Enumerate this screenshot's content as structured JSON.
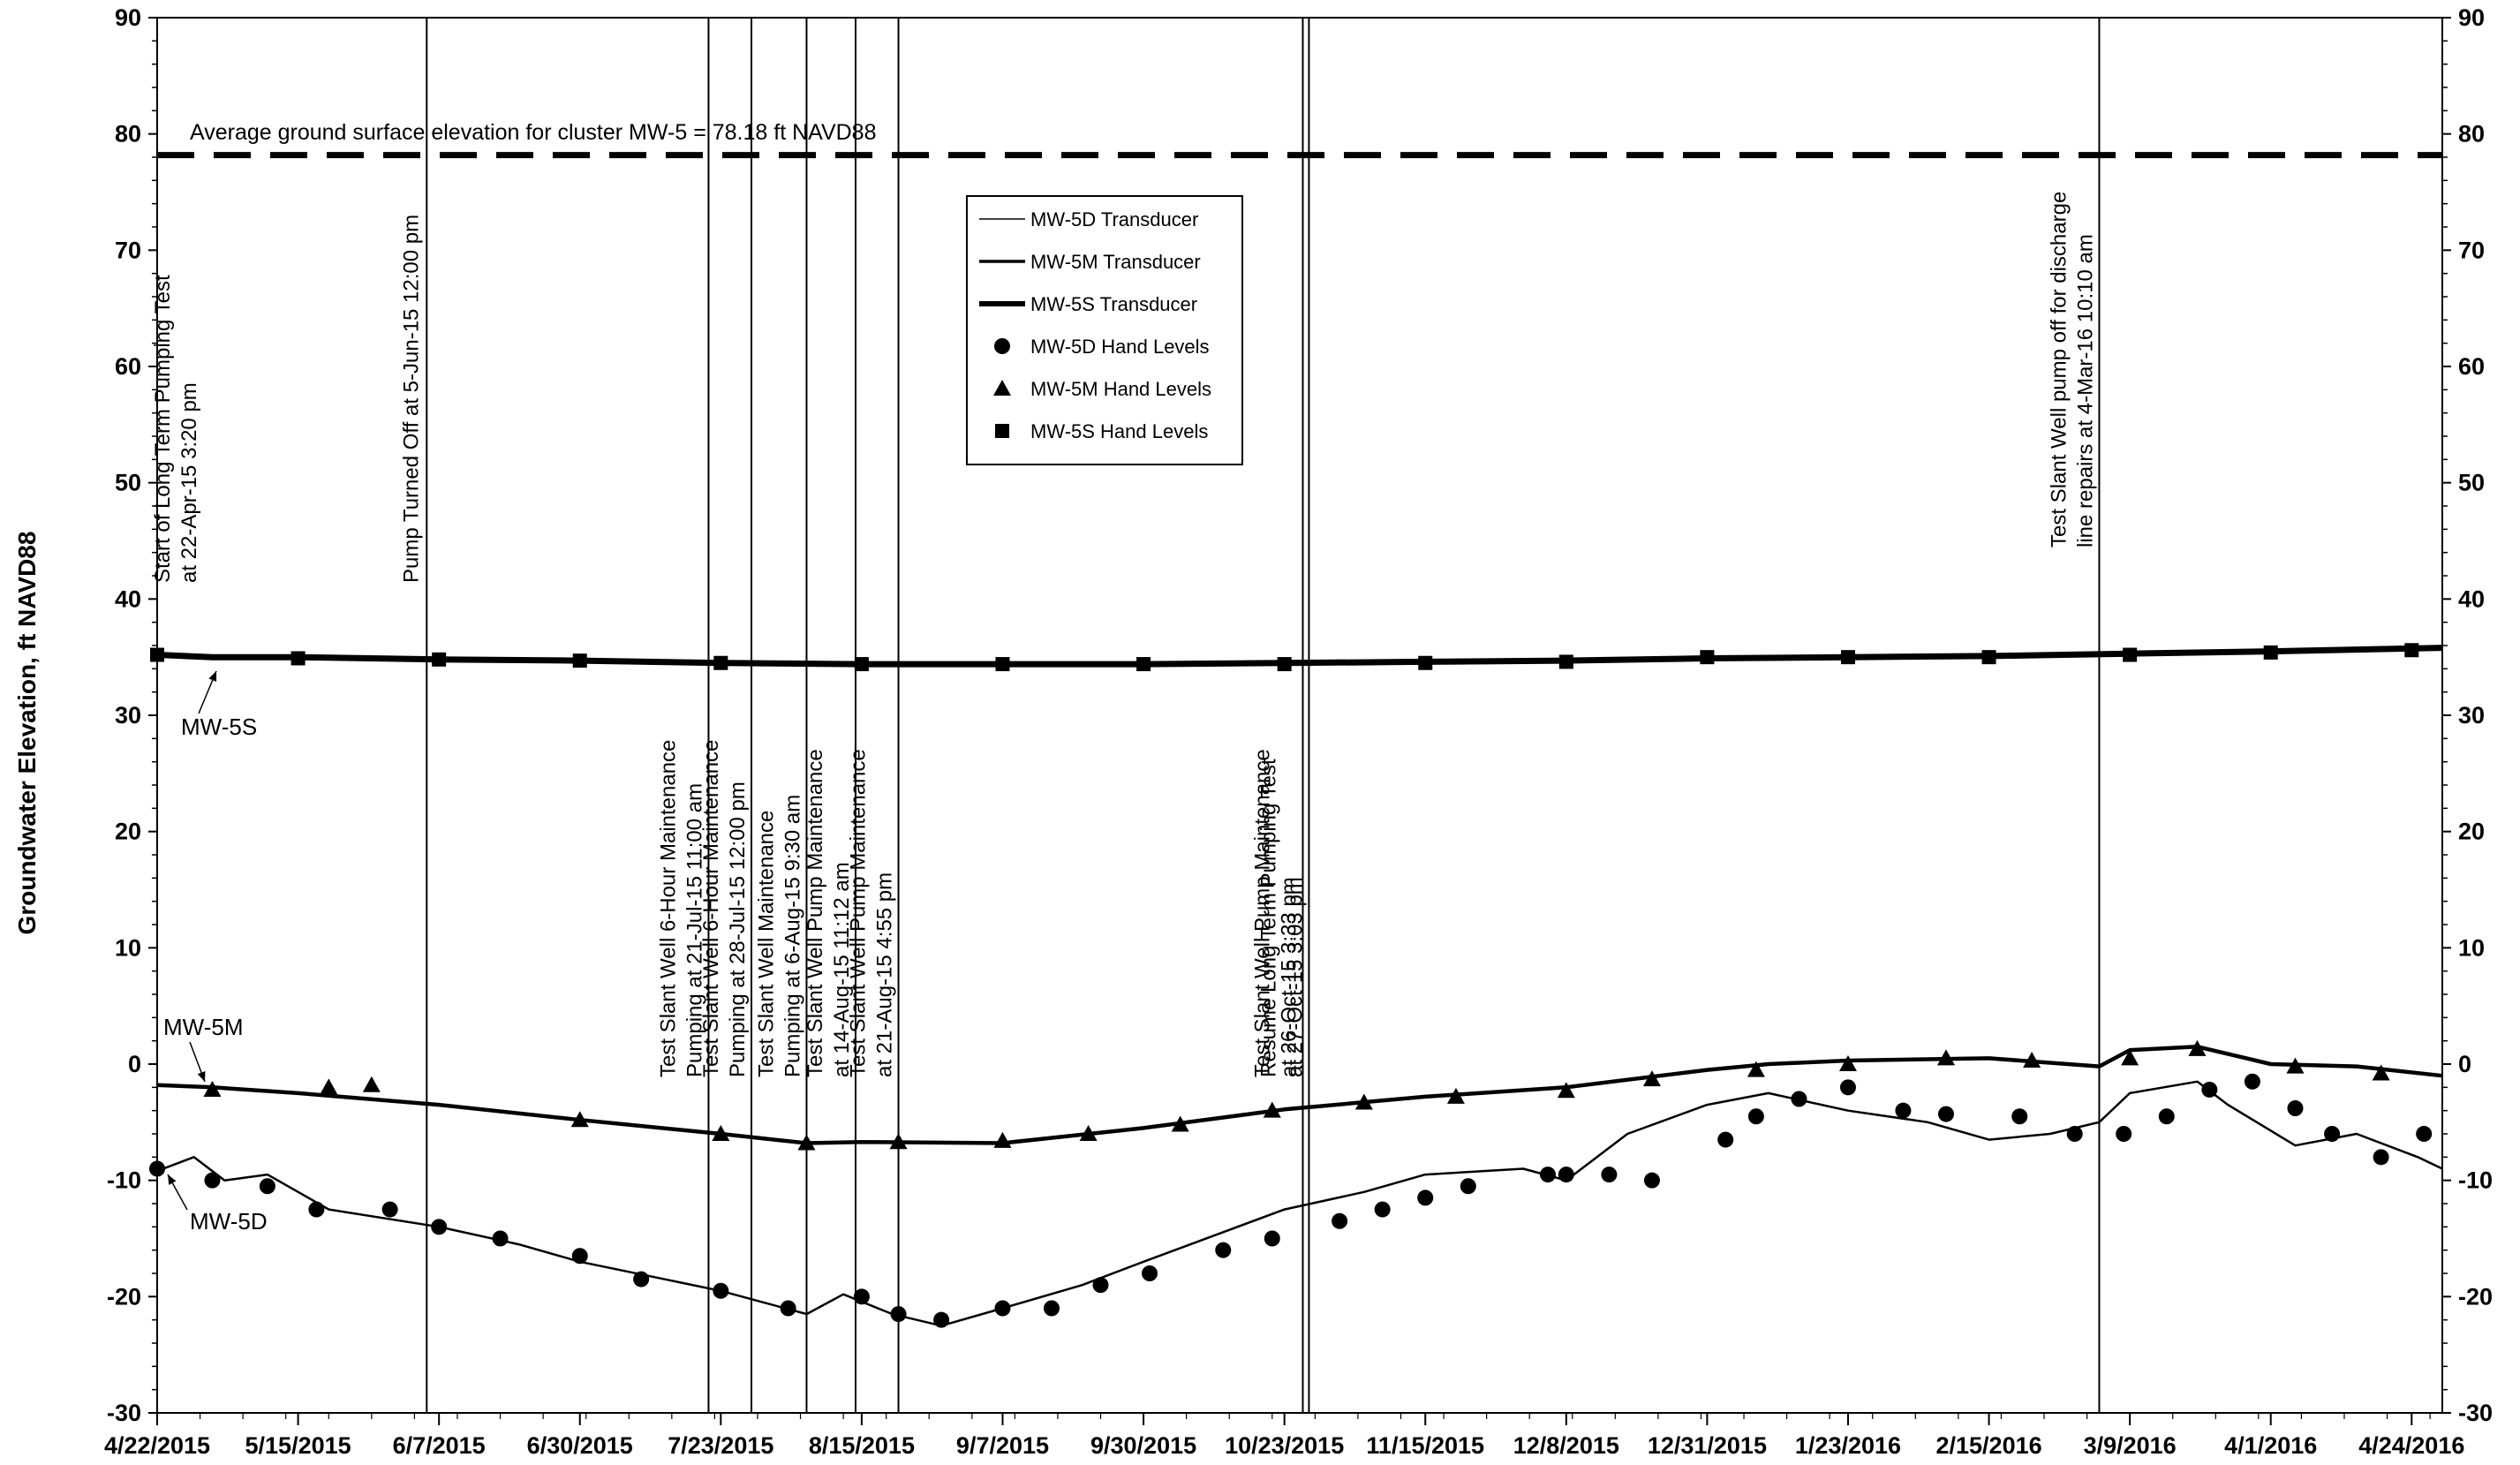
{
  "chart_data": {
    "type": "line",
    "title": "",
    "xlabel": "",
    "ylabel": "Groundwater Elevation, ft NAVD88",
    "x_range": [
      "4/22/2015",
      "4/29/2016"
    ],
    "ylim": [
      -30,
      90
    ],
    "y_ticks": [
      -30,
      -20,
      -10,
      0,
      10,
      20,
      30,
      40,
      50,
      60,
      70,
      80,
      90
    ],
    "y_tick_labels": [
      "-30",
      "-20",
      "-10",
      "0",
      "10",
      "20",
      "30",
      "40",
      "50",
      "60",
      "70",
      "80",
      "90"
    ],
    "x_tick_labels": [
      "4/22/2015",
      "5/15/2015",
      "6/7/2015",
      "6/30/2015",
      "7/23/2015",
      "8/15/2015",
      "9/7/2015",
      "9/30/2015",
      "10/23/2015",
      "11/15/2015",
      "12/8/2015",
      "12/31/2015",
      "1/23/2016",
      "2/15/2016",
      "3/9/2016",
      "4/1/2016",
      "4/24/2016"
    ],
    "grid": false,
    "legend_position": "top-center",
    "ground_surface": {
      "value": 78.18,
      "label": "Average ground surface elevation for cluster MW-5 = 78.18 ft NAVD88"
    },
    "legend": [
      {
        "label": "MW-5D Transducer",
        "kind": "line-thin"
      },
      {
        "label": "MW-5M Transducer",
        "kind": "line-medium"
      },
      {
        "label": "MW-5S Transducer",
        "kind": "line-thick"
      },
      {
        "label": "MW-5D Hand Levels",
        "kind": "circle"
      },
      {
        "label": "MW-5M Hand Levels",
        "kind": "triangle"
      },
      {
        "label": "MW-5S Hand Levels",
        "kind": "square"
      }
    ],
    "series_labels": [
      {
        "text": "MW-5S"
      },
      {
        "text": "MW-5M"
      },
      {
        "text": "MW-5D"
      }
    ],
    "events": [
      {
        "date": "2015-04-22",
        "lines": [
          "Start of Long Term Pumping Test",
          "at 22-Apr-15 3:20 pm"
        ]
      },
      {
        "date": "2015-06-05",
        "lines": [
          "Pump Turned Off at 5-Jun-15 12:00 pm"
        ]
      },
      {
        "date": "2015-07-21",
        "lines": [
          "Test Slant Well 6-Hour Maintenance",
          "Pumping at 21-Jul-15 11:00 am"
        ]
      },
      {
        "date": "2015-07-28",
        "lines": [
          "Test Slant Well 6-Hour Maintenance",
          "Pumping at 28-Jul-15 12:00 pm"
        ]
      },
      {
        "date": "2015-08-06",
        "lines": [
          "Test Slant Well Maintenance",
          "Pumping at 6-Aug-15 9:30 am"
        ]
      },
      {
        "date": "2015-08-14",
        "lines": [
          "Test Slant Well Pump Maintenance",
          "at 14-Aug-15 11:12 am"
        ]
      },
      {
        "date": "2015-08-21",
        "lines": [
          "Test Slant Well Pump Maintenance",
          "at 21-Aug-15 4:55 pm"
        ]
      },
      {
        "date": "2015-10-26",
        "lines": [
          "Test Slant Well Pump Maintenance",
          "at 26-Oct-15 3:33 pm"
        ]
      },
      {
        "date": "2015-10-27",
        "lines": [
          "Resume Long Term Pumping Test",
          "at 27-Oct-15 3:03 pm"
        ]
      },
      {
        "date": "2016-03-04",
        "lines": [
          "Test Slant Well pump off for discharge",
          "line repairs at 4-Mar-16 10:10 am"
        ]
      }
    ],
    "series": [
      {
        "name": "MW-5S Transducer",
        "x": [
          "2015-04-22",
          "2015-05-01",
          "2015-05-15",
          "2015-06-07",
          "2015-06-30",
          "2015-07-23",
          "2015-08-15",
          "2015-09-07",
          "2015-09-30",
          "2015-10-23",
          "2015-11-15",
          "2015-12-08",
          "2015-12-31",
          "2016-01-23",
          "2016-02-15",
          "2016-03-09",
          "2016-04-01",
          "2016-04-29"
        ],
        "y": [
          35.2,
          35.0,
          35.0,
          34.8,
          34.7,
          34.5,
          34.4,
          34.4,
          34.4,
          34.5,
          34.6,
          34.7,
          34.9,
          35.0,
          35.1,
          35.3,
          35.5,
          35.8
        ]
      },
      {
        "name": "MW-5M Transducer",
        "x": [
          "2015-04-22",
          "2015-05-01",
          "2015-05-15",
          "2015-06-07",
          "2015-06-30",
          "2015-07-23",
          "2015-08-06",
          "2015-08-15",
          "2015-09-07",
          "2015-09-30",
          "2015-10-23",
          "2015-11-15",
          "2015-12-08",
          "2015-12-31",
          "2016-01-10",
          "2016-01-23",
          "2016-02-15",
          "2016-03-04",
          "2016-03-09",
          "2016-03-20",
          "2016-04-01",
          "2016-04-15",
          "2016-04-29"
        ],
        "y": [
          -1.8,
          -2.0,
          -2.5,
          -3.5,
          -4.8,
          -6.0,
          -6.8,
          -6.7,
          -6.8,
          -5.5,
          -3.9,
          -2.8,
          -2.0,
          -0.5,
          0.0,
          0.3,
          0.5,
          -0.2,
          1.2,
          1.5,
          0.0,
          -0.2,
          -1.0
        ]
      },
      {
        "name": "MW-5D Transducer",
        "x": [
          "2015-04-22",
          "2015-04-28",
          "2015-05-03",
          "2015-05-10",
          "2015-05-20",
          "2015-06-07",
          "2015-06-20",
          "2015-06-30",
          "2015-07-23",
          "2015-08-06",
          "2015-08-12",
          "2015-08-20",
          "2015-08-28",
          "2015-09-07",
          "2015-09-20",
          "2015-09-30",
          "2015-10-23",
          "2015-11-05",
          "2015-11-15",
          "2015-12-01",
          "2015-12-08",
          "2015-12-18",
          "2015-12-31",
          "2016-01-10",
          "2016-01-23",
          "2016-02-05",
          "2016-02-15",
          "2016-02-25",
          "2016-03-04",
          "2016-03-09",
          "2016-03-20",
          "2016-03-25",
          "2016-04-05",
          "2016-04-15",
          "2016-04-25",
          "2016-04-29"
        ],
        "y": [
          -9.2,
          -8.0,
          -10.0,
          -9.5,
          -12.5,
          -14.0,
          -15.5,
          -17.0,
          -19.5,
          -21.5,
          -19.8,
          -21.5,
          -22.5,
          -21.0,
          -19.0,
          -17.0,
          -12.5,
          -11.0,
          -9.5,
          -9.0,
          -10.0,
          -6.0,
          -3.5,
          -2.5,
          -4.0,
          -5.0,
          -6.5,
          -6.0,
          -5.0,
          -2.5,
          -1.5,
          -3.5,
          -7.0,
          -6.0,
          -8.0,
          -9.0
        ]
      },
      {
        "name": "MW-5D Hand Levels",
        "x": [
          "2015-04-22",
          "2015-05-01",
          "2015-05-10",
          "2015-05-18",
          "2015-05-30",
          "2015-06-07",
          "2015-06-17",
          "2015-06-30",
          "2015-07-10",
          "2015-07-23",
          "2015-08-03",
          "2015-08-15",
          "2015-08-21",
          "2015-08-28",
          "2015-09-07",
          "2015-09-15",
          "2015-09-23",
          "2015-10-01",
          "2015-10-13",
          "2015-10-21",
          "2015-11-01",
          "2015-11-08",
          "2015-11-15",
          "2015-11-22",
          "2015-12-05",
          "2015-12-08",
          "2015-12-15",
          "2015-12-22",
          "2016-01-03",
          "2016-01-08",
          "2016-01-15",
          "2016-01-23",
          "2016-02-01",
          "2016-02-08",
          "2016-02-20",
          "2016-02-29",
          "2016-03-08",
          "2016-03-15",
          "2016-03-22",
          "2016-03-29",
          "2016-04-05",
          "2016-04-11",
          "2016-04-19",
          "2016-04-26"
        ],
        "y": [
          -9.0,
          -10.0,
          -10.5,
          -12.5,
          -12.5,
          -14.0,
          -15.0,
          -16.5,
          -18.5,
          -19.5,
          -21.0,
          -20.0,
          -21.5,
          -22.0,
          -21.0,
          -21.0,
          -19.0,
          -18.0,
          -16.0,
          -15.0,
          -13.5,
          -12.5,
          -11.5,
          -10.5,
          -9.5,
          -9.5,
          -9.5,
          -10.0,
          -6.5,
          -4.5,
          -3.0,
          -2.0,
          -4.0,
          -4.3,
          -4.5,
          -6.0,
          -6.0,
          -4.5,
          -2.2,
          -1.5,
          -3.8,
          -6.0,
          -8.0,
          -6.0
        ]
      },
      {
        "name": "MW-5M Hand Levels",
        "x": [
          "2015-05-01",
          "2015-05-20",
          "2015-05-27",
          "2015-06-30",
          "2015-07-23",
          "2015-08-06",
          "2015-08-21",
          "2015-09-07",
          "2015-09-21",
          "2015-10-06",
          "2015-10-21",
          "2015-11-05",
          "2015-11-20",
          "2015-12-08",
          "2015-12-22",
          "2016-01-08",
          "2016-01-23",
          "2016-02-08",
          "2016-02-22",
          "2016-03-09",
          "2016-03-20",
          "2016-04-05",
          "2016-04-19"
        ],
        "y": [
          -2.2,
          -2.0,
          -1.8,
          -4.8,
          -6.0,
          -6.8,
          -6.7,
          -6.6,
          -6.0,
          -5.2,
          -4.0,
          -3.3,
          -2.8,
          -2.3,
          -1.3,
          -0.5,
          0.0,
          0.5,
          0.3,
          0.5,
          1.3,
          -0.2,
          -0.8
        ]
      },
      {
        "name": "MW-5S Hand Levels",
        "x": [
          "2015-04-22",
          "2015-05-15",
          "2015-06-07",
          "2015-06-30",
          "2015-07-23",
          "2015-08-15",
          "2015-09-07",
          "2015-09-30",
          "2015-10-23",
          "2015-11-15",
          "2015-12-08",
          "2015-12-31",
          "2016-01-23",
          "2016-02-15",
          "2016-03-09",
          "2016-04-01",
          "2016-04-24"
        ],
        "y": [
          35.2,
          34.9,
          34.8,
          34.7,
          34.5,
          34.4,
          34.4,
          34.4,
          34.4,
          34.5,
          34.6,
          35.0,
          35.0,
          35.0,
          35.2,
          35.4,
          35.6
        ]
      }
    ]
  }
}
